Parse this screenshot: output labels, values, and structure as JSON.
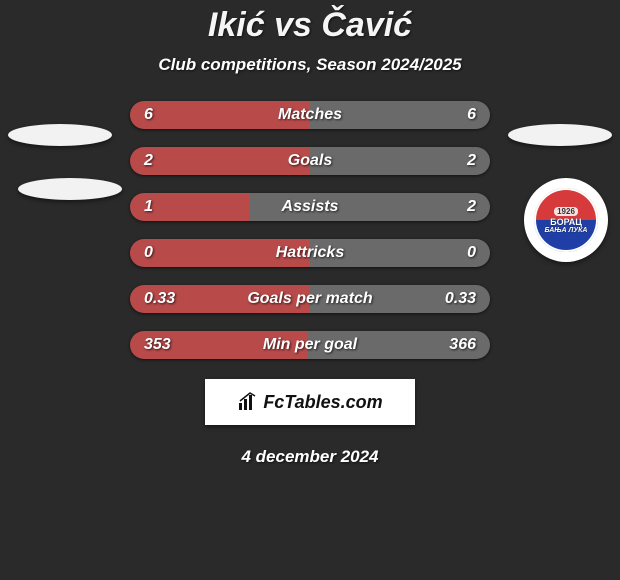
{
  "colors": {
    "background": "#2a2a2a",
    "text": "#ffffff",
    "ellipse": "#f2f2f2",
    "bar_left": "#b84a4a",
    "bar_right": "#6a6a6a",
    "crest_bg": "#ffffff"
  },
  "header": {
    "title": "Ikić vs Čavić",
    "subtitle": "Club competitions, Season 2024/2025"
  },
  "stats": [
    {
      "label": "Matches",
      "left_value": "6",
      "right_value": "6",
      "left_pct": 50,
      "right_pct": 50
    },
    {
      "label": "Goals",
      "left_value": "2",
      "right_value": "2",
      "left_pct": 50,
      "right_pct": 50
    },
    {
      "label": "Assists",
      "left_value": "1",
      "right_value": "2",
      "left_pct": 33.3,
      "right_pct": 66.7
    },
    {
      "label": "Hattricks",
      "left_value": "0",
      "right_value": "0",
      "left_pct": 50,
      "right_pct": 50
    },
    {
      "label": "Goals per match",
      "left_value": "0.33",
      "right_value": "0.33",
      "left_pct": 50,
      "right_pct": 50
    },
    {
      "label": "Min per goal",
      "left_value": "353",
      "right_value": "366",
      "left_pct": 49.1,
      "right_pct": 50.9
    }
  ],
  "crest": {
    "year": "1926",
    "top_text": "БОРАЦ",
    "bottom_text": "БАЊА ЛУКА",
    "bg_gradient_top": "#d63a3a",
    "bg_gradient_bottom": "#1f3fa6"
  },
  "fctables_label": "FcTables.com",
  "footer_date": "4 december 2024"
}
